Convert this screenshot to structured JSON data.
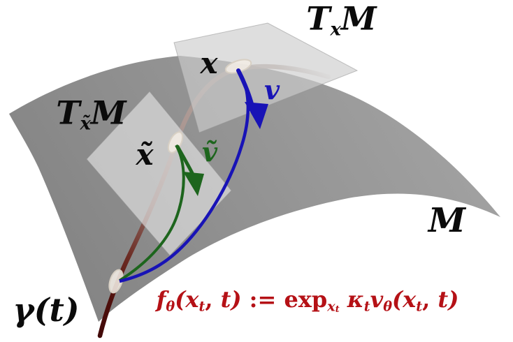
{
  "labels": {
    "tangent_plane_x": {
      "T": "T",
      "sub": "x",
      "M": "M"
    },
    "tangent_plane_x_tilde": {
      "T": "T",
      "sub": "x̃",
      "M": "M"
    },
    "point_x": "x",
    "point_x_tilde": "x̃",
    "vector_v": "v",
    "vector_v_tilde": "ṽ",
    "manifold": "M",
    "curve": "γ(t)"
  },
  "formula": {
    "plain_text": "f_θ(x_t, t) := exp_{x_t} κ_t v_θ(x_t, t)",
    "segments": [
      {
        "t": "f",
        "lv": 0
      },
      {
        "t": "θ",
        "lv": 1
      },
      {
        "t": "(",
        "lv": 0
      },
      {
        "t": "x",
        "lv": 0
      },
      {
        "t": "t",
        "lv": 1
      },
      {
        "t": ", ",
        "lv": 0,
        "up": 1
      },
      {
        "t": "t",
        "lv": 0
      },
      {
        "t": ")",
        "lv": 0
      },
      {
        "t": " := ",
        "lv": 0,
        "up": 1
      },
      {
        "t": "exp",
        "lv": 0,
        "up": 1
      },
      {
        "t": "x",
        "lv": 1
      },
      {
        "t": "t",
        "lv": 2
      },
      {
        "t": " ",
        "lv": 0,
        "up": 1
      },
      {
        "t": "κ",
        "lv": 0
      },
      {
        "t": "t",
        "lv": 1
      },
      {
        "t": "v",
        "lv": 0
      },
      {
        "t": "θ",
        "lv": 1
      },
      {
        "t": "(",
        "lv": 0
      },
      {
        "t": "x",
        "lv": 0
      },
      {
        "t": "t",
        "lv": 1
      },
      {
        "t": ", ",
        "lv": 0,
        "up": 1
      },
      {
        "t": "t",
        "lv": 0
      },
      {
        "t": ")",
        "lv": 0
      }
    ]
  },
  "colors": {
    "vector-blue": "#1813b6",
    "vector-green": "#1d651d",
    "formula-red": "#b51116",
    "surface-gray-light": "#a0a0a0",
    "surface-gray-dark": "#858585",
    "curve-rosy": "#ab9792",
    "curve-dark-red": "#420909",
    "point-cream": "#f3ede5"
  }
}
